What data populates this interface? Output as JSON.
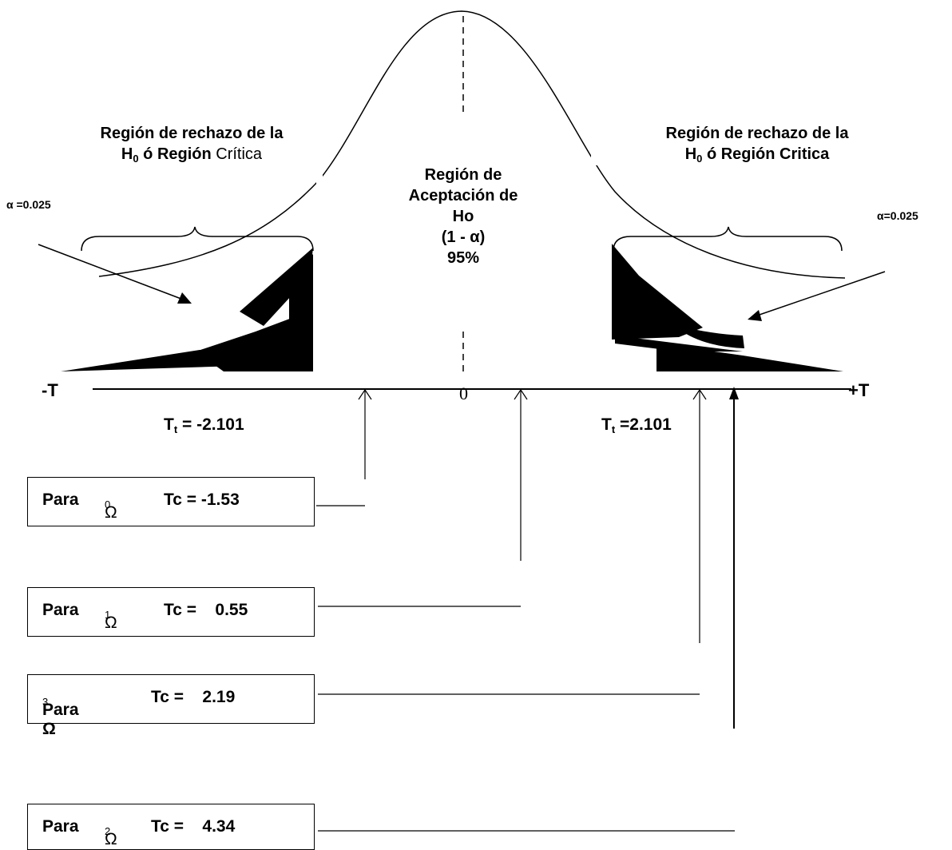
{
  "regions": {
    "left_title_line1": "Región de rechazo de la",
    "left_title_H": "H",
    "left_title_sub": "0",
    "left_title_bold_rest": " ó Región",
    "left_title_normal_rest": " Crítica",
    "right_title_line1": "Región de rechazo de la",
    "right_title_H": "H",
    "right_title_sub": "0",
    "right_title_rest": " ó Región Critica",
    "center_line1": "Región de",
    "center_line2": "Aceptación de",
    "center_line3": "Ho",
    "center_line4": "(1 - α)",
    "center_line5": "95%"
  },
  "alpha_left": "α =0.025",
  "alpha_right": "α=0.025",
  "axis": {
    "neg_label": "-T",
    "pos_label": "+T",
    "zero_label": "0",
    "tt_left_T": "T",
    "tt_left_sub": "t",
    "tt_left_rest": " = -2.101",
    "tt_right_T": "T",
    "tt_right_sub": "t",
    "tt_right_rest": " =2.101"
  },
  "boxes": [
    {
      "para": "Para",
      "omega": "Ω",
      "sub": "0",
      "tc": "Tc = -1.53"
    },
    {
      "para": "Para",
      "omega": "Ω",
      "sub": "1",
      "tc": "Tc =    0.55"
    },
    {
      "para": "Para Ω",
      "omega": "",
      "sub": "3",
      "tc": "Tc =    2.19"
    },
    {
      "para": "Para",
      "omega": "Ω",
      "sub": "2",
      "tc": "Tc =    4.34"
    }
  ]
}
